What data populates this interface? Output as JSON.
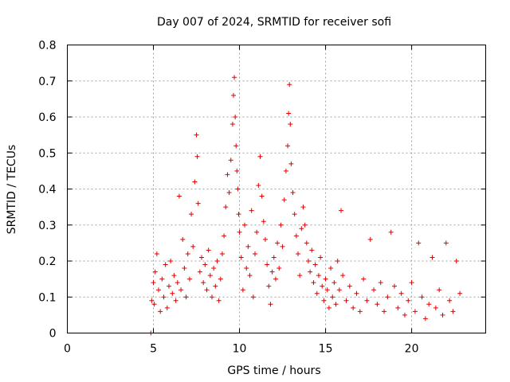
{
  "chart_data": {
    "type": "scatter",
    "title": "Day 007 of 2024, SRMTID for receiver sofi",
    "xlabel": "GPS time / hours",
    "ylabel": "SRMTID / TECUs",
    "xlim": [
      0,
      24.3
    ],
    "ylim": [
      0,
      0.8
    ],
    "xticks": [
      0,
      5,
      10,
      15,
      20
    ],
    "xtick_labels": [
      "0",
      "5",
      "10",
      "15",
      "20"
    ],
    "yticks": [
      0,
      0.1,
      0.2,
      0.3,
      0.4,
      0.5,
      0.6,
      0.7,
      0.8
    ],
    "ytick_labels": [
      "0",
      "0.1",
      "0.2",
      "0.3",
      "0.4",
      "0.5",
      "0.6",
      "0.7",
      "0.8"
    ],
    "grid": true,
    "marker": "plus",
    "series_color": "#e00000",
    "series": [
      {
        "name": "SRMTID",
        "x": [
          4.85,
          4.9,
          5.0,
          5.05,
          5.1,
          5.2,
          5.3,
          5.4,
          5.5,
          5.6,
          5.7,
          5.8,
          5.9,
          6.0,
          6.1,
          6.2,
          6.3,
          6.4,
          6.5,
          6.6,
          6.7,
          6.8,
          6.9,
          7.0,
          7.1,
          7.2,
          7.3,
          7.4,
          7.5,
          7.55,
          7.6,
          7.7,
          7.8,
          7.9,
          8.0,
          8.1,
          8.2,
          8.3,
          8.4,
          8.5,
          8.6,
          8.7,
          8.8,
          8.9,
          9.0,
          9.1,
          9.2,
          9.3,
          9.4,
          9.5,
          9.6,
          9.65,
          9.7,
          9.75,
          9.8,
          9.85,
          9.9,
          9.95,
          10.0,
          10.1,
          10.2,
          10.3,
          10.4,
          10.5,
          10.6,
          10.7,
          10.8,
          10.9,
          11.0,
          11.1,
          11.2,
          11.3,
          11.4,
          11.5,
          11.6,
          11.7,
          11.8,
          11.9,
          12.0,
          12.1,
          12.2,
          12.3,
          12.4,
          12.5,
          12.6,
          12.7,
          12.8,
          12.85,
          12.9,
          12.95,
          13.0,
          13.1,
          13.2,
          13.3,
          13.4,
          13.5,
          13.6,
          13.7,
          13.8,
          13.9,
          14.0,
          14.1,
          14.2,
          14.3,
          14.4,
          14.5,
          14.6,
          14.7,
          14.8,
          14.9,
          15.0,
          15.1,
          15.2,
          15.3,
          15.4,
          15.5,
          15.6,
          15.7,
          15.8,
          15.9,
          16.0,
          16.2,
          16.4,
          16.6,
          16.8,
          17.0,
          17.2,
          17.4,
          17.6,
          17.8,
          18.0,
          18.2,
          18.4,
          18.6,
          18.8,
          19.0,
          19.2,
          19.4,
          19.6,
          19.8,
          20.0,
          20.2,
          20.4,
          20.6,
          20.8,
          21.0,
          21.2,
          21.4,
          21.6,
          21.8,
          22.0,
          22.2,
          22.4,
          22.6,
          22.8
        ],
        "y": [
          0.0,
          0.09,
          0.14,
          0.08,
          0.17,
          0.22,
          0.12,
          0.06,
          0.15,
          0.1,
          0.19,
          0.07,
          0.13,
          0.2,
          0.11,
          0.16,
          0.09,
          0.14,
          0.38,
          0.12,
          0.26,
          0.18,
          0.1,
          0.22,
          0.15,
          0.33,
          0.24,
          0.42,
          0.55,
          0.49,
          0.36,
          0.17,
          0.21,
          0.14,
          0.19,
          0.12,
          0.23,
          0.16,
          0.1,
          0.18,
          0.13,
          0.2,
          0.09,
          0.15,
          0.22,
          0.27,
          0.35,
          0.44,
          0.39,
          0.48,
          0.58,
          0.66,
          0.71,
          0.6,
          0.52,
          0.45,
          0.4,
          0.33,
          0.28,
          0.21,
          0.12,
          0.3,
          0.18,
          0.24,
          0.16,
          0.34,
          0.1,
          0.22,
          0.28,
          0.41,
          0.49,
          0.38,
          0.31,
          0.26,
          0.19,
          0.13,
          0.08,
          0.17,
          0.21,
          0.15,
          0.25,
          0.18,
          0.3,
          0.24,
          0.37,
          0.45,
          0.52,
          0.61,
          0.69,
          0.58,
          0.47,
          0.39,
          0.33,
          0.27,
          0.22,
          0.16,
          0.29,
          0.35,
          0.3,
          0.25,
          0.2,
          0.17,
          0.23,
          0.14,
          0.19,
          0.11,
          0.16,
          0.21,
          0.13,
          0.09,
          0.15,
          0.12,
          0.07,
          0.18,
          0.1,
          0.14,
          0.08,
          0.2,
          0.12,
          0.34,
          0.16,
          0.09,
          0.13,
          0.07,
          0.11,
          0.06,
          0.15,
          0.09,
          0.26,
          0.12,
          0.08,
          0.14,
          0.06,
          0.1,
          0.28,
          0.13,
          0.07,
          0.11,
          0.05,
          0.09,
          0.14,
          0.06,
          0.25,
          0.1,
          0.04,
          0.08,
          0.21,
          0.07,
          0.12,
          0.05,
          0.25,
          0.09,
          0.06,
          0.2,
          0.11
        ]
      }
    ]
  }
}
